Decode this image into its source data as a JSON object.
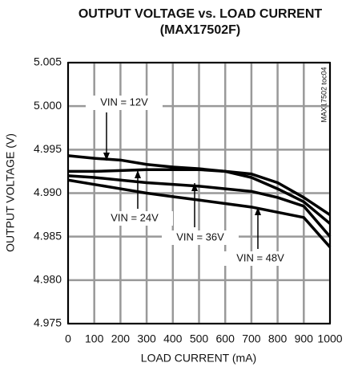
{
  "chart_data": {
    "type": "line",
    "title": "OUTPUT VOLTAGE vs. LOAD CURRENT",
    "subtitle": "(MAX17502F)",
    "xlabel": "LOAD CURRENT (mA)",
    "ylabel": "OUTPUT VOLTAGE (V)",
    "side_note": "MAX17502 toc04",
    "x": [
      0,
      100,
      200,
      300,
      400,
      500,
      600,
      700,
      800,
      900,
      1000
    ],
    "series": [
      {
        "name": "VIN = 12V",
        "color": "#000000",
        "values": [
          4.9943,
          4.994,
          4.9938,
          4.9933,
          4.993,
          4.9928,
          4.9925,
          4.9922,
          4.9912,
          4.9895,
          4.9875
        ]
      },
      {
        "name": "VIN = 24V",
        "color": "#000000",
        "values": [
          4.9925,
          4.9925,
          4.9926,
          4.9927,
          4.9927,
          4.9927,
          4.9925,
          4.9918,
          4.9905,
          4.989,
          4.9865
        ]
      },
      {
        "name": "VIN = 36V",
        "color": "#000000",
        "values": [
          4.992,
          4.9918,
          4.9915,
          4.9912,
          4.991,
          4.9908,
          4.9905,
          4.9902,
          4.9895,
          4.9885,
          4.985
        ]
      },
      {
        "name": "VIN = 48V",
        "color": "#000000",
        "values": [
          4.9915,
          4.991,
          4.9905,
          4.99,
          4.9896,
          4.9892,
          4.9888,
          4.9884,
          4.9878,
          4.9872,
          4.9838
        ]
      }
    ],
    "xlim": [
      0,
      1000
    ],
    "xticks": [
      0,
      100,
      200,
      300,
      400,
      500,
      600,
      700,
      800,
      900,
      1000
    ],
    "ylim": [
      4.975,
      5.005
    ],
    "yticks": [
      4.975,
      {
        "value": 4.98,
        "label": "4.980"
      },
      4.985,
      {
        "value": 4.99,
        "label": "4.990"
      },
      4.995,
      {
        "value": 5,
        "label": "5.000"
      },
      5.005
    ],
    "grid": true
  }
}
